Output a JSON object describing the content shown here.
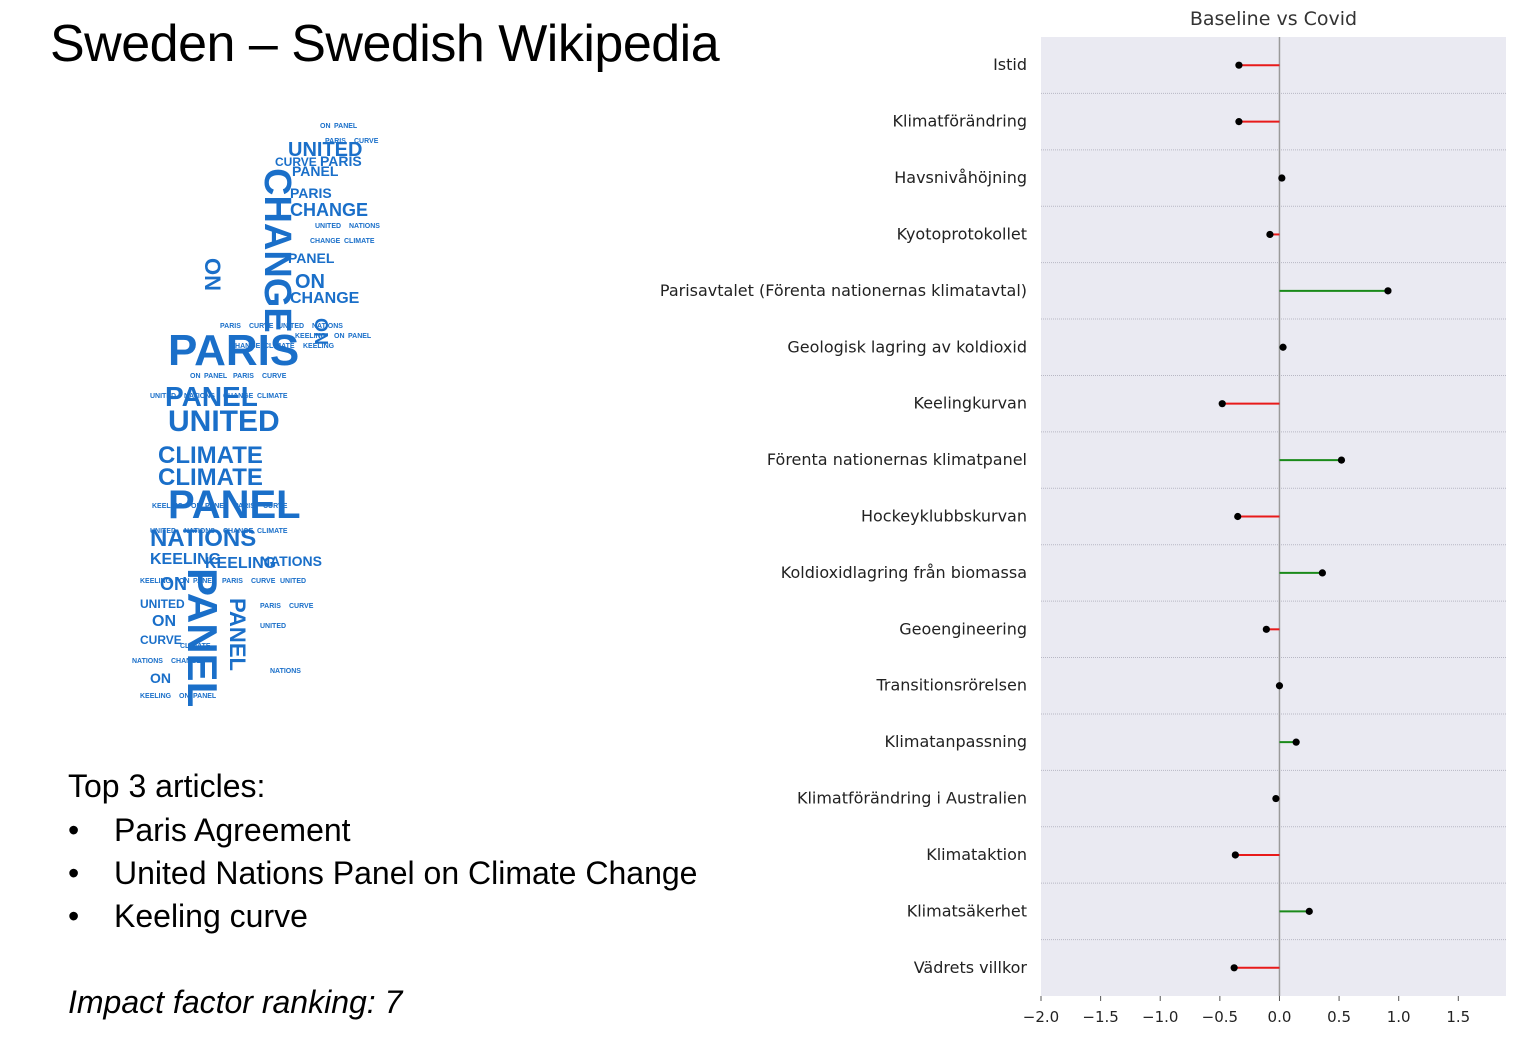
{
  "slide": {
    "title": "Sweden – Swedish Wikipedia",
    "top_articles_heading": "Top 3 articles:",
    "top_articles": [
      "Paris Agreement",
      "United Nations Panel on Climate Change",
      "Keeling curve"
    ],
    "bullet": "•",
    "impact_text": "Impact  factor ranking: 7"
  },
  "word_cloud": {
    "shape": "Sweden map",
    "color": "#1a6fc9",
    "words": [
      "CHANGE",
      "PARIS",
      "PANEL",
      "UNITED",
      "CLIMATE",
      "CLIMATE",
      "PANEL",
      "NATIONS",
      "KEELING",
      "PANEL",
      "ON",
      "ON",
      "CHANGE",
      "PANEL",
      "UNITED",
      "PARIS",
      "CURVE",
      "ON",
      "PANEL",
      "UNITED",
      "ON",
      "PARIS",
      "CHANGE",
      "NATIONS",
      "KEELING",
      "ON",
      "PANEL",
      "ON",
      "CURVE"
    ]
  },
  "chart_data": {
    "type": "lollipop",
    "title": "Baseline vs Covid",
    "xlim": [
      -2.0,
      1.9
    ],
    "xticks": [
      "−2.0",
      "−1.5",
      "−1.0",
      "−0.5",
      "0.0",
      "0.5",
      "1.0",
      "1.5"
    ],
    "xtick_values": [
      -2.0,
      -1.5,
      -1.0,
      -0.5,
      0.0,
      0.5,
      1.0,
      1.5
    ],
    "grid": "horizontal",
    "positive_color": "#1a8a1a",
    "negative_color": "#e81a1a",
    "background": "#eaeaf2",
    "categories": [
      "Istid",
      "Klimatförändring",
      "Havsnivåhöjning",
      "Kyotoprotokollet",
      "Parisavtalet (Förenta nationernas klimatavtal)",
      "Geologisk lagring av koldioxid",
      "Keelingkurvan",
      "Förenta nationernas klimatpanel",
      "Hockeyklubbskurvan",
      "Koldioxidlagring från biomassa",
      "Geoengineering",
      "Transitionsrörelsen",
      "Klimatanpassning",
      "Klimatförändring i Australien",
      "Klimataktion",
      "Klimatsäkerhet",
      "Vädrets villkor"
    ],
    "values": [
      -0.34,
      -0.34,
      0.02,
      -0.08,
      0.91,
      0.03,
      -0.48,
      0.52,
      -0.35,
      0.36,
      -0.11,
      0.0,
      0.14,
      -0.03,
      -0.37,
      0.25,
      -0.38
    ]
  }
}
